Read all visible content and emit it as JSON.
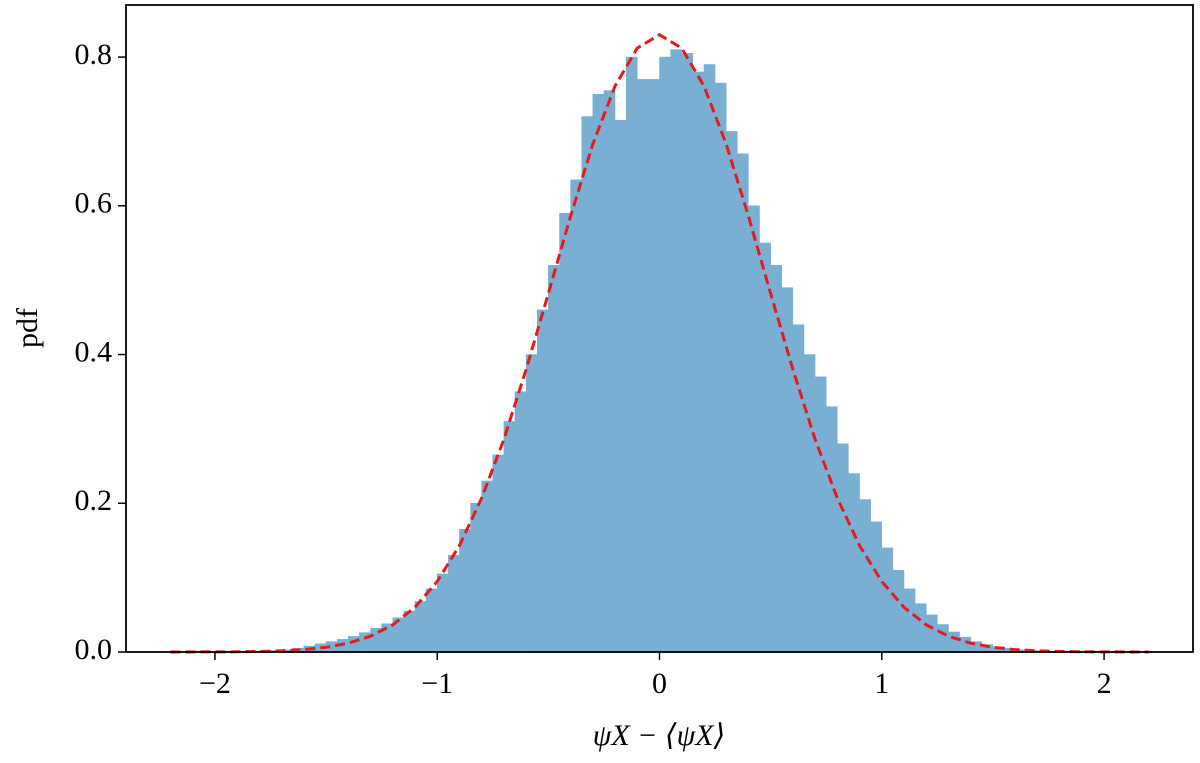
{
  "chart_data": {
    "type": "histogram",
    "xlabel": "ψX − ⟨ψX⟩",
    "ylabel": "pdf",
    "color": "#7aafd4",
    "bins": [
      -2.2,
      -2.15,
      -2.1,
      -2.05,
      -2.0,
      -1.95,
      -1.9,
      -1.85,
      -1.8,
      -1.75,
      -1.7,
      -1.65,
      -1.6,
      -1.55,
      -1.5,
      -1.45,
      -1.4,
      -1.35,
      -1.3,
      -1.25,
      -1.2,
      -1.15,
      -1.1,
      -1.05,
      -1.0,
      -0.95,
      -0.9,
      -0.85,
      -0.8,
      -0.75,
      -0.7,
      -0.65,
      -0.6,
      -0.55,
      -0.5,
      -0.45,
      -0.4,
      -0.35,
      -0.3,
      -0.25,
      -0.2,
      -0.15,
      -0.1,
      -0.05,
      0.0,
      0.05,
      0.1,
      0.15,
      0.2,
      0.25,
      0.3,
      0.35,
      0.4,
      0.45,
      0.5,
      0.55,
      0.6,
      0.65,
      0.7,
      0.75,
      0.8,
      0.85,
      0.9,
      0.95,
      1.0,
      1.05,
      1.1,
      1.15,
      1.2,
      1.25,
      1.3,
      1.35,
      1.4,
      1.45,
      1.5,
      1.55,
      1.6,
      1.65,
      1.7,
      1.75,
      1.8,
      1.85,
      1.9,
      1.95,
      2.0,
      2.05,
      2.1,
      2.15,
      2.2
    ],
    "counts": [
      0,
      0,
      0,
      0.0003,
      0.0004,
      0.0005,
      0.0008,
      0.001,
      0.0015,
      0.002,
      0.003,
      0.005,
      0.008,
      0.011,
      0.014,
      0.017,
      0.021,
      0.026,
      0.032,
      0.038,
      0.046,
      0.055,
      0.068,
      0.085,
      0.105,
      0.13,
      0.165,
      0.2,
      0.23,
      0.265,
      0.31,
      0.35,
      0.4,
      0.46,
      0.52,
      0.59,
      0.635,
      0.72,
      0.75,
      0.755,
      0.715,
      0.8,
      0.77,
      0.77,
      0.8,
      0.81,
      0.805,
      0.78,
      0.79,
      0.765,
      0.7,
      0.67,
      0.6,
      0.55,
      0.52,
      0.49,
      0.44,
      0.4,
      0.37,
      0.33,
      0.28,
      0.24,
      0.205,
      0.175,
      0.14,
      0.11,
      0.085,
      0.065,
      0.05,
      0.037,
      0.027,
      0.02,
      0.014,
      0.01,
      0.007,
      0.005,
      0.003,
      0.002,
      0.0015,
      0.001,
      0.0007,
      0.0005,
      0.0003,
      0.0002,
      0.0001,
      0,
      0,
      0
    ],
    "curve": {
      "color": "#e41a1c",
      "x": [
        -2.2,
        -2.1,
        -2.0,
        -1.9,
        -1.8,
        -1.7,
        -1.6,
        -1.5,
        -1.4,
        -1.3,
        -1.2,
        -1.1,
        -1.0,
        -0.9,
        -0.8,
        -0.7,
        -0.6,
        -0.5,
        -0.4,
        -0.3,
        -0.2,
        -0.1,
        0.0,
        0.1,
        0.2,
        0.3,
        0.4,
        0.5,
        0.6,
        0.7,
        0.8,
        0.9,
        1.0,
        1.1,
        1.2,
        1.3,
        1.4,
        1.5,
        1.6,
        1.7,
        1.8,
        1.9,
        2.0,
        2.1,
        2.2
      ],
      "values": [
        0,
        0.0001,
        0.0001,
        0.0003,
        0.0007,
        0.0016,
        0.0032,
        0.0063,
        0.0118,
        0.0212,
        0.0365,
        0.0601,
        0.0948,
        0.143,
        0.207,
        0.286,
        0.38,
        0.482,
        0.586,
        0.683,
        0.761,
        0.812,
        0.83,
        0.812,
        0.761,
        0.683,
        0.586,
        0.482,
        0.38,
        0.286,
        0.207,
        0.143,
        0.0948,
        0.0601,
        0.0365,
        0.0212,
        0.0118,
        0.0063,
        0.0032,
        0.0016,
        0.0007,
        0.0003,
        0.0001,
        0.0001,
        0
      ]
    },
    "xlim": [
      -2.4,
      2.4
    ],
    "ylim": [
      0,
      0.87
    ],
    "xticks": [
      {
        "value": -2,
        "label": "−2"
      },
      {
        "value": -1,
        "label": "−1"
      },
      0,
      1,
      2
    ],
    "yticks": [
      {
        "value": 0,
        "label": "0.0"
      },
      0.2,
      0.4,
      0.6,
      0.8
    ]
  }
}
